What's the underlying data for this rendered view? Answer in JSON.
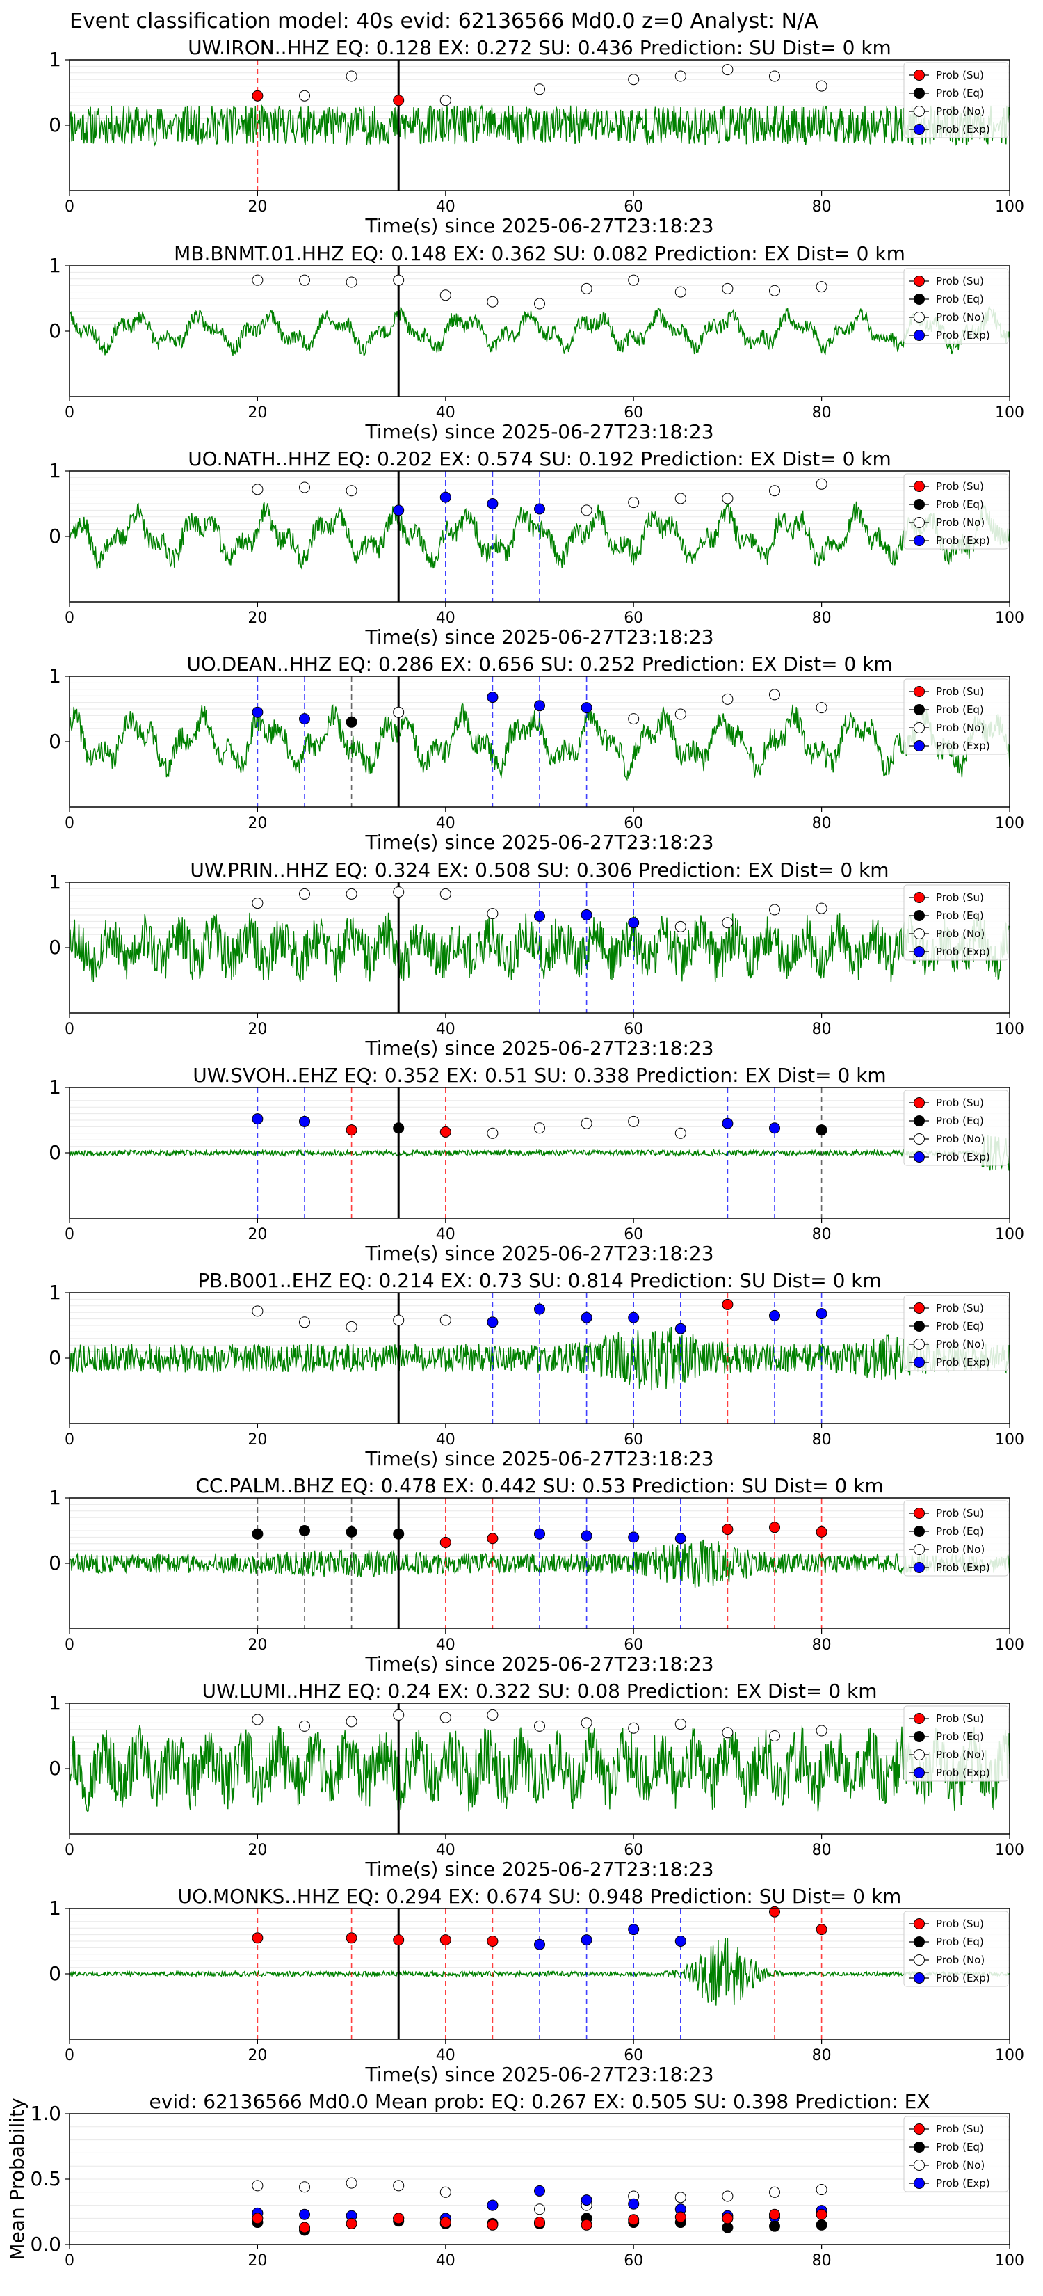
{
  "figure": {
    "suptitle": "Event classification model: 40s evid: 62136566 Md0.0 z=0 Analyst: N/A",
    "xlabel": "Time(s) since 2025-06-27T23:18:23",
    "legend": [
      "Prob (Su)",
      "Prob (Eq)",
      "Prob (No)",
      "Prob (Exp)"
    ],
    "colors": {
      "su": "#ff0000",
      "eq": "#000000",
      "no": "#ffffff",
      "exp": "#0000ff",
      "wave": "#008000"
    },
    "xticks": [
      0,
      20,
      40,
      60,
      80,
      100
    ],
    "yticks_wave": [
      0,
      1
    ],
    "yticks_mean": [
      "0.0",
      "0.5",
      "1.0"
    ],
    "mean_ylabel": "Mean Probability"
  },
  "chart_data": [
    {
      "type": "line",
      "title": "UW.IRON..HHZ   EQ: 0.128  EX: 0.272  SU: 0.436   Prediction: SU    Dist= 0 km",
      "amp": 0.3,
      "style": "steady",
      "seed": 11,
      "xlim": [
        0,
        100
      ],
      "ylim": [
        -1,
        1
      ],
      "event_time": 35,
      "points": [
        [
          20,
          "su",
          0.45
        ],
        [
          25,
          "no",
          0.45
        ],
        [
          30,
          "no",
          0.75
        ],
        [
          35,
          "su",
          0.38
        ],
        [
          40,
          "no",
          0.38
        ],
        [
          50,
          "no",
          0.55
        ],
        [
          60,
          "no",
          0.7
        ],
        [
          65,
          "no",
          0.75
        ],
        [
          70,
          "no",
          0.85
        ],
        [
          75,
          "no",
          0.75
        ],
        [
          80,
          "no",
          0.6
        ]
      ]
    },
    {
      "type": "line",
      "title": "MB.BNMT.01.HHZ   EQ: 0.148  EX: 0.362  SU: 0.082   Prediction: EX    Dist= 0 km",
      "amp": 0.32,
      "style": "wave",
      "seed": 23,
      "xlim": [
        0,
        100
      ],
      "ylim": [
        -1,
        1
      ],
      "event_time": 35,
      "points": [
        [
          20,
          "no",
          0.78
        ],
        [
          25,
          "no",
          0.78
        ],
        [
          30,
          "no",
          0.75
        ],
        [
          35,
          "no",
          0.78
        ],
        [
          40,
          "no",
          0.55
        ],
        [
          45,
          "no",
          0.45
        ],
        [
          50,
          "no",
          0.42
        ],
        [
          55,
          "no",
          0.65
        ],
        [
          60,
          "no",
          0.78
        ],
        [
          65,
          "no",
          0.6
        ],
        [
          70,
          "no",
          0.65
        ],
        [
          75,
          "no",
          0.62
        ],
        [
          80,
          "no",
          0.68
        ]
      ]
    },
    {
      "type": "line",
      "title": "UO.NATH..HHZ   EQ: 0.202  EX: 0.574  SU: 0.192   Prediction: EX    Dist= 0 km",
      "amp": 0.45,
      "style": "wave",
      "seed": 37,
      "xlim": [
        0,
        100
      ],
      "ylim": [
        -1,
        1
      ],
      "event_time": 35,
      "points": [
        [
          20,
          "no",
          0.72
        ],
        [
          25,
          "no",
          0.75
        ],
        [
          30,
          "no",
          0.7
        ],
        [
          35,
          "exp",
          0.4
        ],
        [
          40,
          "exp",
          0.6
        ],
        [
          45,
          "exp",
          0.5
        ],
        [
          50,
          "exp",
          0.42
        ],
        [
          55,
          "no",
          0.4
        ],
        [
          60,
          "no",
          0.52
        ],
        [
          65,
          "no",
          0.58
        ],
        [
          70,
          "no",
          0.58
        ],
        [
          75,
          "no",
          0.7
        ],
        [
          80,
          "no",
          0.8
        ]
      ]
    },
    {
      "type": "line",
      "title": "UO.DEAN..HHZ   EQ: 0.286  EX: 0.656  SU: 0.252   Prediction: EX    Dist= 0 km",
      "amp": 0.5,
      "style": "wave",
      "seed": 41,
      "xlim": [
        0,
        100
      ],
      "ylim": [
        -1,
        1
      ],
      "event_time": 35,
      "points": [
        [
          20,
          "exp",
          0.45
        ],
        [
          25,
          "exp",
          0.35
        ],
        [
          30,
          "eq",
          0.3
        ],
        [
          35,
          "no",
          0.45
        ],
        [
          45,
          "exp",
          0.68
        ],
        [
          50,
          "exp",
          0.55
        ],
        [
          55,
          "exp",
          0.52
        ],
        [
          60,
          "no",
          0.35
        ],
        [
          65,
          "no",
          0.42
        ],
        [
          70,
          "no",
          0.65
        ],
        [
          75,
          "no",
          0.72
        ],
        [
          80,
          "no",
          0.52
        ]
      ]
    },
    {
      "type": "line",
      "title": "UW.PRIN..HHZ   EQ: 0.324  EX: 0.508  SU: 0.306   Prediction: EX    Dist= 0 km",
      "amp": 0.45,
      "style": "noisy",
      "seed": 53,
      "xlim": [
        0,
        100
      ],
      "ylim": [
        -1,
        1
      ],
      "event_time": 35,
      "points": [
        [
          20,
          "no",
          0.68
        ],
        [
          25,
          "no",
          0.82
        ],
        [
          30,
          "no",
          0.82
        ],
        [
          35,
          "no",
          0.85
        ],
        [
          40,
          "no",
          0.82
        ],
        [
          45,
          "no",
          0.52
        ],
        [
          50,
          "exp",
          0.48
        ],
        [
          55,
          "exp",
          0.5
        ],
        [
          60,
          "exp",
          0.38
        ],
        [
          65,
          "no",
          0.32
        ],
        [
          70,
          "no",
          0.38
        ],
        [
          75,
          "no",
          0.58
        ],
        [
          80,
          "no",
          0.6
        ]
      ]
    },
    {
      "type": "line",
      "title": "UW.SVOH..EHZ   EQ: 0.352  EX: 0.51  SU: 0.338   Prediction: EX    Dist= 0 km",
      "amp": 0.04,
      "style": "quiet",
      "seed": 67,
      "xlim": [
        0,
        100
      ],
      "ylim": [
        -1,
        1
      ],
      "event_time": 35,
      "points": [
        [
          20,
          "exp",
          0.52
        ],
        [
          25,
          "exp",
          0.48
        ],
        [
          30,
          "su",
          0.35
        ],
        [
          35,
          "eq",
          0.38
        ],
        [
          40,
          "su",
          0.32
        ],
        [
          45,
          "no",
          0.3
        ],
        [
          50,
          "no",
          0.38
        ],
        [
          55,
          "no",
          0.45
        ],
        [
          60,
          "no",
          0.48
        ],
        [
          65,
          "no",
          0.3
        ],
        [
          70,
          "exp",
          0.45
        ],
        [
          75,
          "exp",
          0.38
        ],
        [
          80,
          "eq",
          0.35
        ]
      ]
    },
    {
      "type": "line",
      "title": "PB.B001..EHZ   EQ: 0.214  EX: 0.73  SU: 0.814   Prediction: SU    Dist= 0 km",
      "amp": 0.22,
      "style": "burst",
      "seed": 79,
      "xlim": [
        0,
        100
      ],
      "ylim": [
        -1,
        1
      ],
      "event_time": 35,
      "points": [
        [
          20,
          "no",
          0.72
        ],
        [
          25,
          "no",
          0.55
        ],
        [
          30,
          "no",
          0.48
        ],
        [
          35,
          "no",
          0.58
        ],
        [
          40,
          "no",
          0.58
        ],
        [
          45,
          "exp",
          0.55
        ],
        [
          50,
          "exp",
          0.75
        ],
        [
          55,
          "exp",
          0.62
        ],
        [
          60,
          "exp",
          0.62
        ],
        [
          65,
          "exp",
          0.45
        ],
        [
          70,
          "su",
          0.82
        ],
        [
          75,
          "exp",
          0.65
        ],
        [
          80,
          "exp",
          0.68
        ]
      ]
    },
    {
      "type": "line",
      "title": "CC.PALM..BHZ   EQ: 0.478  EX: 0.442  SU: 0.53   Prediction: SU    Dist= 0 km",
      "amp": 0.15,
      "style": "mid",
      "seed": 83,
      "xlim": [
        0,
        100
      ],
      "ylim": [
        -1,
        1
      ],
      "event_time": 35,
      "points": [
        [
          20,
          "eq",
          0.45
        ],
        [
          25,
          "eq",
          0.5
        ],
        [
          30,
          "eq",
          0.48
        ],
        [
          35,
          "eq",
          0.45
        ],
        [
          40,
          "su",
          0.32
        ],
        [
          45,
          "su",
          0.38
        ],
        [
          50,
          "exp",
          0.45
        ],
        [
          55,
          "exp",
          0.42
        ],
        [
          60,
          "exp",
          0.4
        ],
        [
          65,
          "exp",
          0.38
        ],
        [
          70,
          "su",
          0.52
        ],
        [
          75,
          "su",
          0.55
        ],
        [
          80,
          "su",
          0.48
        ]
      ]
    },
    {
      "type": "line",
      "title": "UW.LUMI..HHZ   EQ: 0.24  EX: 0.322  SU: 0.08   Prediction: EX    Dist= 0 km",
      "amp": 0.55,
      "style": "noisy",
      "seed": 97,
      "xlim": [
        0,
        100
      ],
      "ylim": [
        -1,
        1
      ],
      "event_time": 35,
      "points": [
        [
          20,
          "no",
          0.75
        ],
        [
          25,
          "no",
          0.65
        ],
        [
          30,
          "no",
          0.72
        ],
        [
          35,
          "no",
          0.82
        ],
        [
          40,
          "no",
          0.78
        ],
        [
          45,
          "no",
          0.82
        ],
        [
          50,
          "no",
          0.65
        ],
        [
          55,
          "no",
          0.7
        ],
        [
          60,
          "no",
          0.62
        ],
        [
          65,
          "no",
          0.68
        ],
        [
          70,
          "no",
          0.55
        ],
        [
          75,
          "no",
          0.5
        ],
        [
          80,
          "no",
          0.58
        ]
      ]
    },
    {
      "type": "line",
      "title": "UO.MONKS..HHZ   EQ: 0.294  EX: 0.674  SU: 0.948   Prediction: SU    Dist= 0 km",
      "amp": 0.03,
      "style": "event",
      "seed": 101,
      "xlim": [
        0,
        100
      ],
      "ylim": [
        -1,
        1
      ],
      "event_time": 35,
      "points": [
        [
          20,
          "su",
          0.55
        ],
        [
          30,
          "su",
          0.55
        ],
        [
          35,
          "su",
          0.52
        ],
        [
          40,
          "su",
          0.52
        ],
        [
          45,
          "su",
          0.5
        ],
        [
          50,
          "exp",
          0.45
        ],
        [
          55,
          "exp",
          0.52
        ],
        [
          60,
          "exp",
          0.68
        ],
        [
          65,
          "exp",
          0.5
        ],
        [
          75,
          "su",
          0.95
        ],
        [
          80,
          "su",
          0.68
        ]
      ]
    },
    {
      "type": "scatter",
      "title": "evid: 62136566  Md0.0   Mean prob:   EQ: 0.267  EX: 0.505  SU: 0.398   Prediction: EX",
      "xlim": [
        0,
        100
      ],
      "ylim": [
        0,
        1
      ],
      "x": [
        20,
        25,
        30,
        35,
        40,
        45,
        50,
        55,
        60,
        65,
        70,
        75,
        80
      ],
      "series": [
        {
          "name": "Prob (Su)",
          "key": "su",
          "values": [
            0.2,
            0.13,
            0.16,
            0.2,
            0.17,
            0.15,
            0.17,
            0.15,
            0.19,
            0.21,
            0.2,
            0.23,
            0.23
          ]
        },
        {
          "name": "Prob (Eq)",
          "key": "eq",
          "values": [
            0.17,
            0.11,
            0.16,
            0.18,
            0.16,
            0.16,
            0.16,
            0.2,
            0.17,
            0.17,
            0.13,
            0.14,
            0.15
          ]
        },
        {
          "name": "Prob (No)",
          "key": "no",
          "values": [
            0.45,
            0.44,
            0.47,
            0.45,
            0.4,
            0.3,
            0.27,
            0.3,
            0.37,
            0.36,
            0.37,
            0.4,
            0.42
          ]
        },
        {
          "name": "Prob (Exp)",
          "key": "exp",
          "values": [
            0.24,
            0.23,
            0.22,
            0.2,
            0.2,
            0.3,
            0.41,
            0.34,
            0.31,
            0.27,
            0.22,
            0.21,
            0.26
          ]
        }
      ]
    }
  ]
}
